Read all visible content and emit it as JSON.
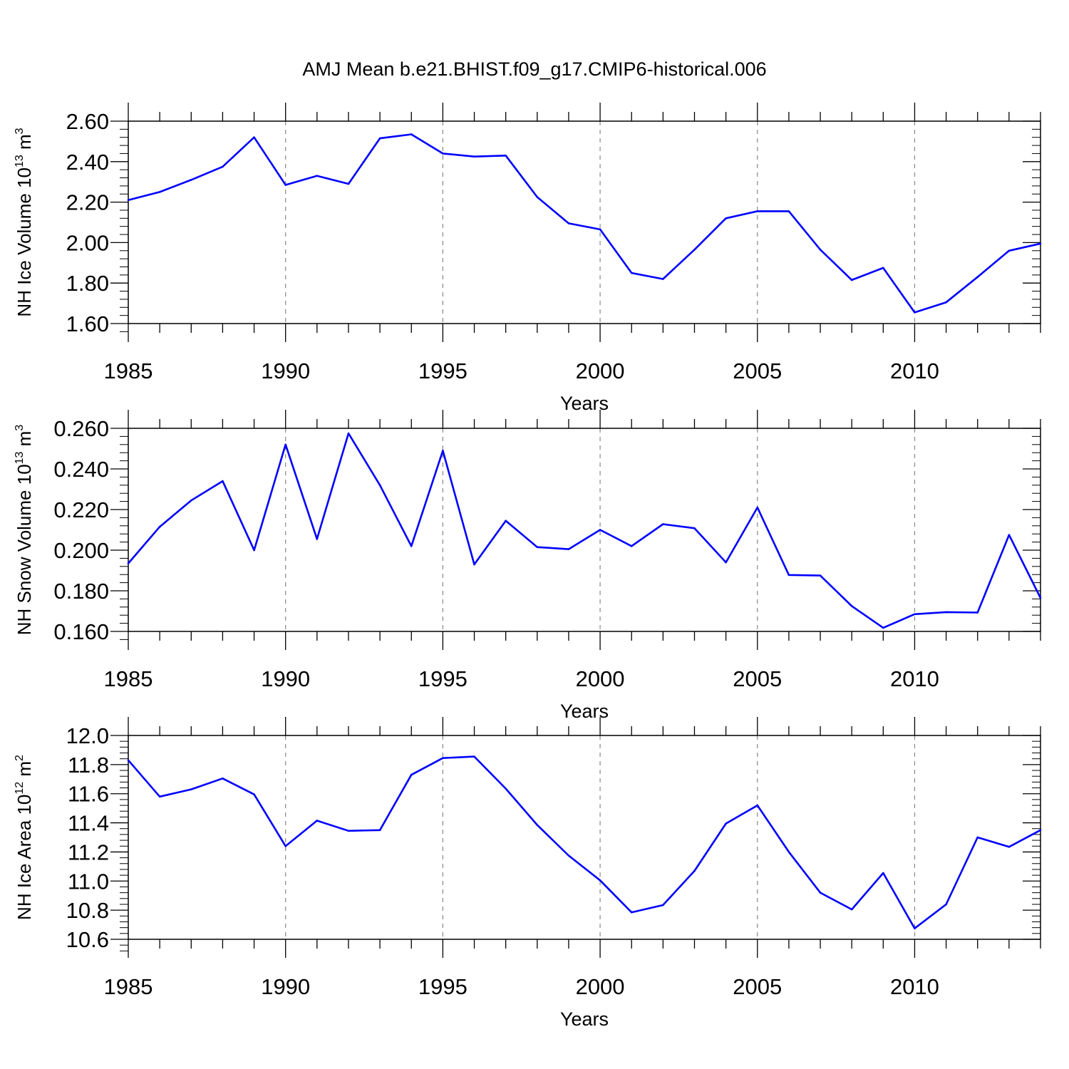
{
  "title": "AMJ Mean b.e21.BHIST.f09_g17.CMIP6-historical.006",
  "line_color": "#0000ff",
  "chart_data": [
    {
      "type": "line",
      "title": "",
      "ylabel": {
        "main": "NH Ice Volume 10",
        "exponent": "13",
        "unit": " m",
        "unit_exponent": "3"
      },
      "xlabel": "Years",
      "xlim": [
        1985,
        2014
      ],
      "ylim": [
        1.6,
        2.6
      ],
      "y_ticks": [
        "1.60",
        "1.80",
        "2.00",
        "2.20",
        "2.40",
        "2.60"
      ],
      "x_ticks": [
        "1985",
        "1990",
        "1995",
        "2000",
        "2005",
        "2010"
      ],
      "grid": "dashed vertical at major x ticks",
      "x": [
        1985,
        1986,
        1987,
        1988,
        1989,
        1990,
        1991,
        1992,
        1993,
        1994,
        1995,
        1996,
        1997,
        1998,
        1999,
        2000,
        2001,
        2002,
        2003,
        2004,
        2005,
        2006,
        2007,
        2008,
        2009,
        2010,
        2011,
        2012,
        2013,
        2014
      ],
      "series": [
        {
          "values": [
            2.21,
            2.25,
            2.31,
            2.375,
            2.52,
            2.285,
            2.33,
            2.29,
            2.515,
            2.535,
            2.44,
            2.425,
            2.43,
            2.225,
            2.095,
            2.065,
            1.85,
            1.82,
            1.965,
            2.12,
            2.155,
            2.155,
            1.965,
            1.815,
            1.875,
            1.655,
            1.705,
            1.83,
            1.96,
            1.995
          ]
        }
      ]
    },
    {
      "type": "line",
      "title": "",
      "ylabel": {
        "main": "NH Snow Volume 10",
        "exponent": "13",
        "unit": " m",
        "unit_exponent": "3"
      },
      "xlabel": "Years",
      "xlim": [
        1985,
        2014
      ],
      "ylim": [
        0.16,
        0.26
      ],
      "y_ticks": [
        "0.160",
        "0.180",
        "0.200",
        "0.220",
        "0.240",
        "0.260"
      ],
      "x_ticks": [
        "1985",
        "1990",
        "1995",
        "2000",
        "2005",
        "2010"
      ],
      "grid": "dashed vertical at major x ticks",
      "x": [
        1985,
        1986,
        1987,
        1988,
        1989,
        1990,
        1991,
        1992,
        1993,
        1994,
        1995,
        1996,
        1997,
        1998,
        1999,
        2000,
        2001,
        2002,
        2003,
        2004,
        2005,
        2006,
        2007,
        2008,
        2009,
        2010,
        2011,
        2012,
        2013,
        2014
      ],
      "series": [
        {
          "values": [
            0.1935,
            0.2115,
            0.2245,
            0.234,
            0.2,
            0.252,
            0.2055,
            0.2575,
            0.232,
            0.202,
            0.249,
            0.193,
            0.2145,
            0.2015,
            0.2005,
            0.21,
            0.202,
            0.2128,
            0.2108,
            0.194,
            0.221,
            0.1878,
            0.1875,
            0.1725,
            0.1618,
            0.1685,
            0.1695,
            0.1693,
            0.2075,
            0.1765
          ]
        }
      ]
    },
    {
      "type": "line",
      "title": "",
      "ylabel": {
        "main": "NH Ice Area 10",
        "exponent": "12",
        "unit": " m",
        "unit_exponent": "2"
      },
      "xlabel": "Years",
      "xlim": [
        1985,
        2014
      ],
      "ylim": [
        10.6,
        12.0
      ],
      "y_ticks": [
        "10.6",
        "10.8",
        "11.0",
        "11.2",
        "11.4",
        "11.6",
        "11.8",
        "12.0"
      ],
      "x_ticks": [
        "1985",
        "1990",
        "1995",
        "2000",
        "2005",
        "2010"
      ],
      "grid": "dashed vertical at major x ticks",
      "x": [
        1985,
        1986,
        1987,
        1988,
        1989,
        1990,
        1991,
        1992,
        1993,
        1994,
        1995,
        1996,
        1997,
        1998,
        1999,
        2000,
        2001,
        2002,
        2003,
        2004,
        2005,
        2006,
        2007,
        2008,
        2009,
        2010,
        2011,
        2012,
        2013,
        2014
      ],
      "series": [
        {
          "values": [
            11.83,
            11.58,
            11.63,
            11.705,
            11.595,
            11.24,
            11.415,
            11.345,
            11.35,
            11.73,
            11.845,
            11.855,
            11.635,
            11.385,
            11.175,
            11.005,
            10.785,
            10.835,
            11.07,
            11.395,
            11.52,
            11.2,
            10.92,
            10.805,
            11.055,
            10.675,
            10.84,
            11.3,
            11.235,
            11.35
          ]
        }
      ]
    }
  ]
}
